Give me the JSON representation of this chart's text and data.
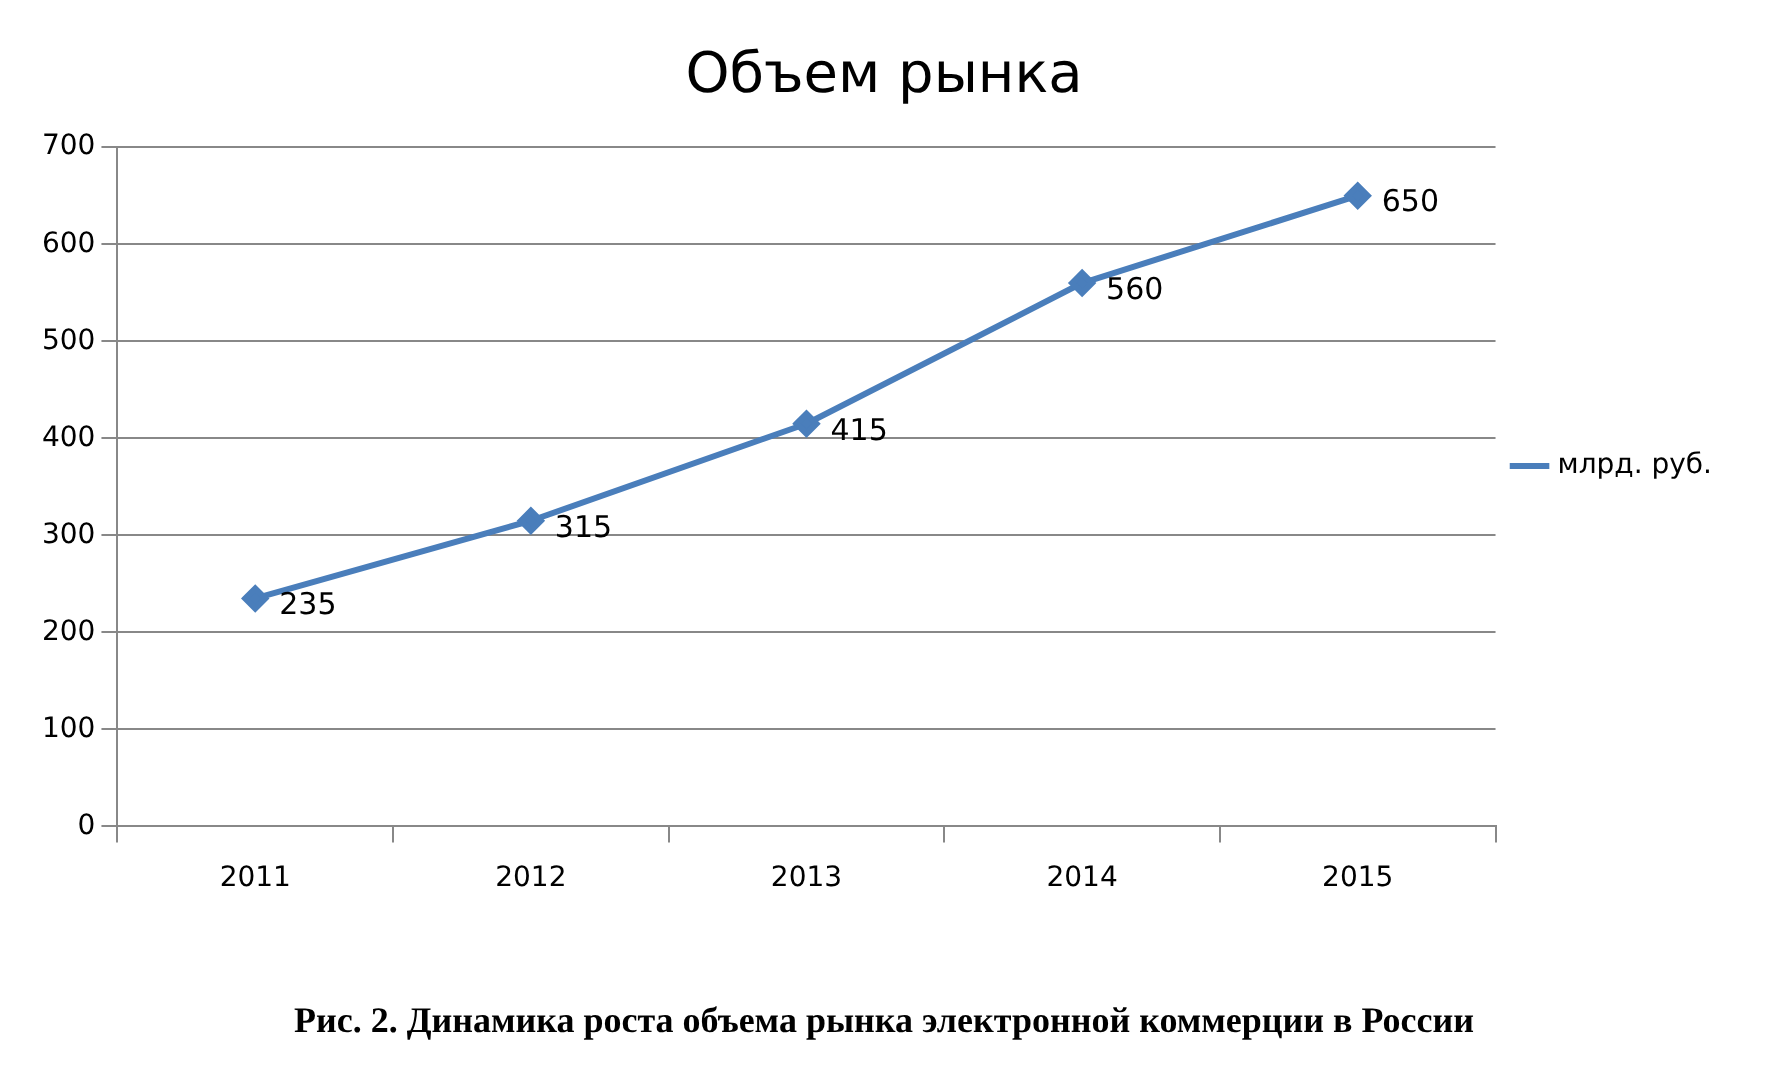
{
  "chart_data": {
    "type": "line",
    "title": "Объем рынка",
    "categories": [
      "2011",
      "2012",
      "2013",
      "2014",
      "2015"
    ],
    "series": [
      {
        "name": "млрд. руб.",
        "color": "#4a7ebb",
        "values": [
          235,
          315,
          415,
          560,
          650
        ]
      }
    ],
    "ylim": [
      0,
      700
    ],
    "yticks": [
      0,
      100,
      200,
      300,
      400,
      500,
      600,
      700
    ],
    "grid": "y",
    "legend": "right",
    "marker": "diamond",
    "line_style": "solid",
    "data_labels": true,
    "annotations": [
      "Рис. 2. Динамика роста объема рынка электронной коммерции в России"
    ]
  }
}
